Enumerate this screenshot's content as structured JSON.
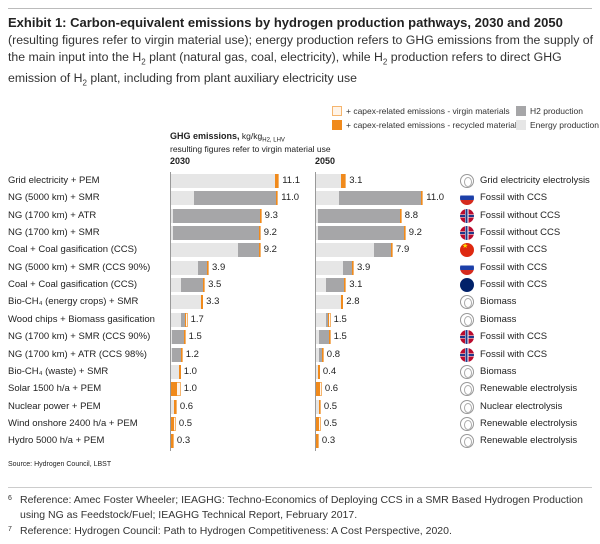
{
  "title": "Exhibit 1: Carbon-equivalent emissions by hydrogen production pathways, 2030 and 2050",
  "subtitle_parts": [
    "(resulting figures refer to virgin material use); energy production refers to GHG emissions from the supply of the main input into the H",
    "2",
    " plant (natural gas, coal, electricity), while H",
    "2",
    " production refers to direct GHG emission of H",
    "2",
    " plant, including from plant auxiliary electricity use"
  ],
  "legend": {
    "capex_virgin": "+ capex-related emissions - virgin materials",
    "capex_recycled": "+ capex-related emissions - recycled materials",
    "h2": "H2 production",
    "energy": "Energy production"
  },
  "header": {
    "metric": "GHG emissions,",
    "unit": "kg/kg",
    "unit_sub": "H2, LHV",
    "note": "resulting figures refer to virgin material use"
  },
  "colors": {
    "energy": "#e6e6e6",
    "h2": "#a6a6a8",
    "capex_virgin": "#fff4e8",
    "capex_recycled": "#f08a1c",
    "capex_virgin_border": "#f5b56e"
  },
  "source": "Source: Hydrogen Council, LBST",
  "footnotes": [
    {
      "num": "6",
      "text": "Reference: Amec Foster Wheeler; IEAGHG: Techno-Economics of Deploying CCS in a SMR Based Hydrogen Production using NG as Feedstock/Fuel; IEAGHG Technical Report, February 2017."
    },
    {
      "num": "7",
      "text": "Reference: Hydrogen Council: Path to Hydrogen Competitiveness: A Cost Perspective, 2020."
    }
  ],
  "chart_data": {
    "type": "bar",
    "orientation": "horizontal-stacked",
    "title": "Carbon-equivalent emissions by hydrogen production pathways, 2030 and 2050",
    "xlabel": "GHG emissions, kg/kg H2, LHV",
    "panels": [
      "2030",
      "2050"
    ],
    "categories": [
      {
        "label": "Grid electricity + PEM",
        "cat": "Grid electricity electrolysis",
        "icon": "globe"
      },
      {
        "label": "NG (5000 km) + SMR",
        "cat": "Fossil with CCS",
        "icon": "russia"
      },
      {
        "label": "NG (1700 km) + ATR",
        "cat": "Fossil without CCS",
        "icon": "norway"
      },
      {
        "label": "NG (1700 km) + SMR",
        "cat": "Fossil without CCS",
        "icon": "norway"
      },
      {
        "label": "Coal + Coal gasification (CCS)",
        "cat": "Fossil with CCS",
        "icon": "china"
      },
      {
        "label": "NG (5000 km) + SMR (CCS 90%)",
        "cat": "Fossil with CCS",
        "icon": "russia"
      },
      {
        "label": "Coal + Coal gasification (CCS)",
        "cat": "Fossil with CCS",
        "icon": "australia"
      },
      {
        "label": "Bio-CH4 (energy crops) + SMR",
        "cat": "Biomass",
        "icon": "globe"
      },
      {
        "label": "Wood chips + Biomass gasification",
        "cat": "Biomass",
        "icon": "globe"
      },
      {
        "label": "NG (1700 km) + SMR (CCS 90%)",
        "cat": "Fossil with CCS",
        "icon": "norway"
      },
      {
        "label": "NG (1700 km) + ATR (CCS 98%)",
        "cat": "Fossil with CCS",
        "icon": "norway"
      },
      {
        "label": "Bio-CH4 (waste) + SMR",
        "cat": "Biomass",
        "icon": "globe"
      },
      {
        "label": "Solar 1500 h/a + PEM",
        "cat": "Renewable electrolysis",
        "icon": "globe"
      },
      {
        "label": "Nuclear power + PEM",
        "cat": "Nuclear electrolysis",
        "icon": "globe"
      },
      {
        "label": "Wind onshore 2400 h/a + PEM",
        "cat": "Renewable electrolysis",
        "icon": "globe"
      },
      {
        "label": "Hydro 5000 h/a + PEM",
        "cat": "Renewable electrolysis",
        "icon": "globe"
      }
    ],
    "series_names": [
      "Energy production",
      "H2 production",
      "+ capex-related emissions - recycled materials",
      "+ capex-related emissions - virgin materials"
    ],
    "data_2030": {
      "totals": [
        11.1,
        11.0,
        9.3,
        9.2,
        9.2,
        3.9,
        3.5,
        3.3,
        1.7,
        1.5,
        1.2,
        1.0,
        1.0,
        0.6,
        0.5,
        0.3
      ],
      "energy": [
        10.7,
        2.4,
        0.2,
        0.2,
        6.9,
        2.8,
        1.0,
        3.1,
        1.0,
        0.1,
        0.1,
        0.8,
        0.0,
        0.3,
        0.0,
        0.0
      ],
      "h2": [
        0.0,
        8.4,
        8.9,
        8.8,
        2.1,
        0.9,
        2.3,
        0.0,
        0.4,
        1.2,
        0.9,
        0.0,
        0.0,
        0.0,
        0.0,
        0.0
      ],
      "capex_recycled": [
        0.3,
        0.1,
        0.1,
        0.1,
        0.1,
        0.1,
        0.1,
        0.2,
        0.1,
        0.1,
        0.1,
        0.2,
        0.6,
        0.2,
        0.3,
        0.2
      ],
      "capex_virgin": [
        0.1,
        0.1,
        0.1,
        0.1,
        0.1,
        0.1,
        0.1,
        0.0,
        0.2,
        0.1,
        0.1,
        0.0,
        0.4,
        0.1,
        0.2,
        0.1
      ]
    },
    "data_2050": {
      "totals": [
        3.1,
        11.0,
        8.8,
        9.2,
        7.9,
        3.9,
        3.1,
        2.8,
        1.5,
        1.5,
        0.8,
        0.4,
        0.6,
        0.5,
        0.5,
        0.3
      ],
      "energy": [
        2.6,
        2.4,
        0.2,
        0.2,
        5.9,
        2.8,
        1.0,
        2.6,
        1.0,
        0.3,
        0.3,
        0.2,
        0.0,
        0.3,
        0.0,
        0.0
      ],
      "h2": [
        0.0,
        8.4,
        8.4,
        8.8,
        1.8,
        0.9,
        1.9,
        0.0,
        0.2,
        1.0,
        0.3,
        0.0,
        0.0,
        0.0,
        0.0,
        0.0
      ],
      "capex_recycled": [
        0.4,
        0.1,
        0.1,
        0.1,
        0.1,
        0.1,
        0.1,
        0.2,
        0.1,
        0.1,
        0.1,
        0.2,
        0.4,
        0.1,
        0.3,
        0.2
      ],
      "capex_virgin": [
        0.1,
        0.1,
        0.1,
        0.1,
        0.1,
        0.1,
        0.1,
        0.0,
        0.2,
        0.1,
        0.1,
        0.0,
        0.2,
        0.1,
        0.2,
        0.1
      ]
    },
    "xlim": [
      0,
      11.1
    ]
  }
}
